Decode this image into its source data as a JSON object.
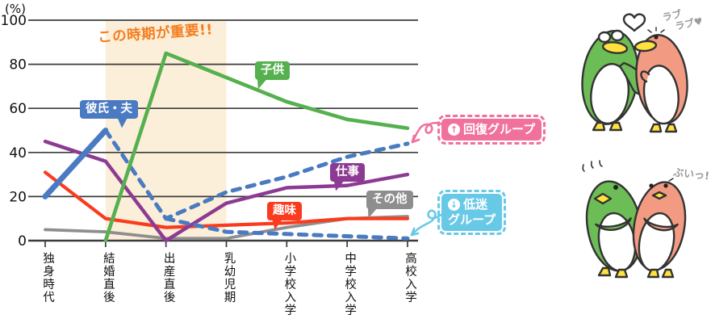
{
  "chart_data": {
    "type": "line",
    "unit_label": "(%)",
    "categories": [
      "独身時代",
      "結婚直後",
      "出産直後",
      "乳幼児期",
      "小学校入学",
      "中学校入学",
      "高校入学"
    ],
    "ylim": [
      0,
      100
    ],
    "yticks": [
      0,
      20,
      40,
      60,
      80,
      100
    ],
    "grid": true,
    "series": [
      {
        "id": "sonota",
        "name": "その他",
        "color": "#8e8e8e",
        "style": "solid",
        "width": 3.8,
        "values": [
          5,
          4,
          1,
          1,
          6,
          10,
          11
        ]
      },
      {
        "id": "shumi",
        "name": "趣味",
        "color": "#fb3b1e",
        "style": "solid",
        "width": 4.2,
        "values": [
          31,
          10,
          6,
          7,
          8,
          10,
          10
        ]
      },
      {
        "id": "shigoto",
        "name": "仕事",
        "color": "#8d3a93",
        "style": "solid",
        "width": 4.4,
        "values": [
          45,
          36,
          0,
          17,
          24,
          25,
          30
        ]
      },
      {
        "id": "recovery",
        "name": "回復グループ",
        "color": "#4a7bc2",
        "style": "dashed",
        "width": 5,
        "values": [
          null,
          50,
          10,
          22,
          29,
          38,
          44
        ]
      },
      {
        "id": "slump",
        "name": "低迷グループ",
        "color": "#4a7bc2",
        "style": "dashed",
        "width": 5,
        "values": [
          null,
          null,
          10,
          4,
          3,
          2,
          1
        ]
      },
      {
        "id": "kodomo",
        "name": "子供",
        "color": "#56b04f",
        "style": "solid",
        "width": 4.6,
        "values": [
          null,
          0,
          85,
          74,
          63,
          55,
          51
        ]
      },
      {
        "id": "kareshi",
        "name": "彼氏・夫",
        "color": "#4a7bc2",
        "style": "solid",
        "width": 7,
        "values": [
          20,
          50,
          null,
          null,
          null,
          null,
          null
        ]
      }
    ],
    "highlight_band": {
      "label": "この時期が重要!!",
      "from_category": "結婚直後",
      "to_category": "乳幼児期",
      "color": "#fcefd9",
      "label_color": "#f57d1f"
    }
  },
  "group_badges": [
    {
      "label": "回復グループ",
      "icon_glyph": "↑",
      "color": "#f0719b"
    },
    {
      "label_line1": "低迷",
      "label_line2": "グループ",
      "icon_glyph": "↓",
      "color": "#68c9e7"
    }
  ],
  "illustrations": {
    "love_caption_line1": "ラブ",
    "love_caption_line2": "ラブ♥",
    "huffy_caption": "ぶいっ!"
  }
}
